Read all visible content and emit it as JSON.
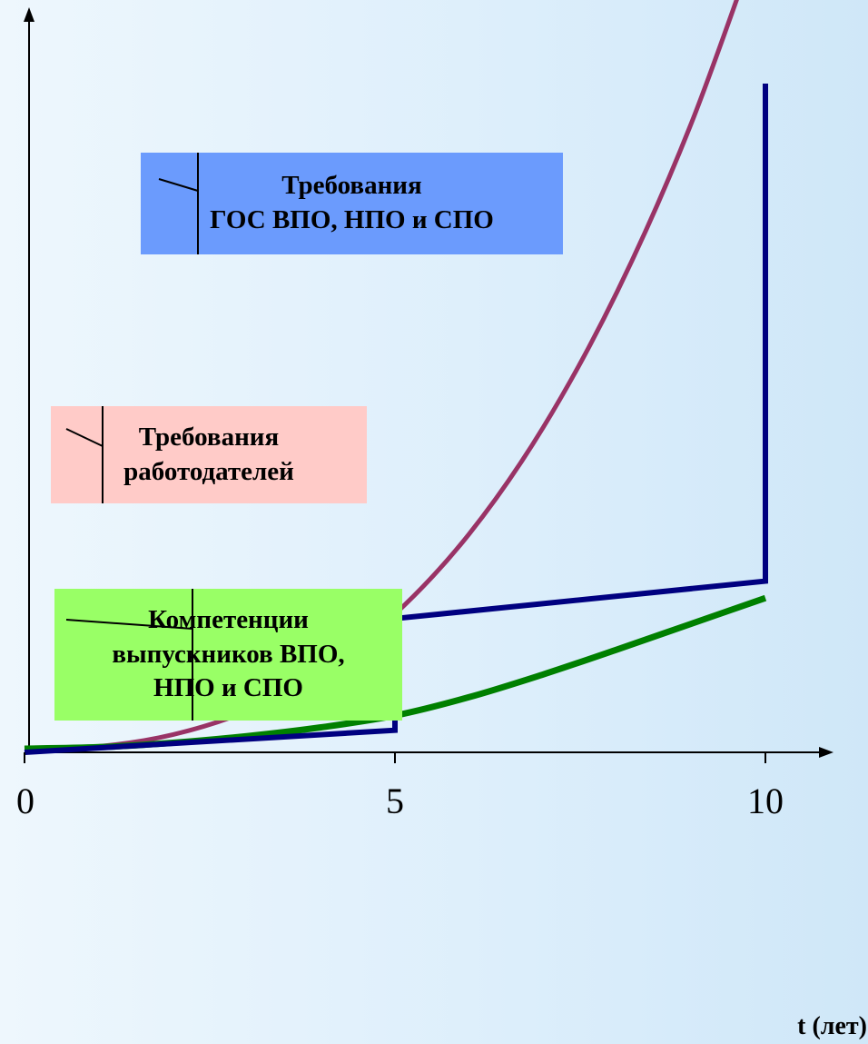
{
  "chart_data": {
    "type": "line",
    "xlabel": "t (лет)",
    "ylabel": "",
    "xlim": [
      0,
      10.8
    ],
    "ylim": [
      0,
      10
    ],
    "x_ticks": [
      0,
      5,
      10
    ],
    "grid": false,
    "series": [
      {
        "name": "Требования ГОС ВПО, НПО и СПО",
        "color": "#6b9bfd",
        "line_color": "#000080",
        "x": [
          0,
          5,
          5,
          10,
          10
        ],
        "y": [
          0,
          0.3,
          1.82,
          2.33,
          9.1
        ]
      },
      {
        "name": "Требования работодателей",
        "color": "#ffcbc8",
        "line_color": "#993366",
        "x": [
          0,
          1,
          2,
          3,
          4,
          5,
          6,
          7,
          8,
          9,
          10
        ],
        "y": [
          0.05,
          0.08,
          0.24,
          0.56,
          1.09,
          1.88,
          2.97,
          4.42,
          6.27,
          8.56,
          11.35
        ]
      },
      {
        "name": "Компетенции выпускников ВПО, НПО и СПО",
        "color": "#99ff66",
        "line_color": "#008000",
        "x": [
          0,
          1,
          2,
          3,
          4,
          5,
          6,
          7,
          8,
          9,
          10
        ],
        "y": [
          0.05,
          0.07,
          0.13,
          0.22,
          0.34,
          0.5,
          0.75,
          1.06,
          1.4,
          1.75,
          2.1
        ]
      }
    ],
    "legend": [
      {
        "lines": [
          "Требования",
          "ГОС ВПО, НПО и СПО"
        ],
        "fill": "#6b9bfd"
      },
      {
        "lines": [
          "Требования",
          "работодателей"
        ],
        "fill": "#ffcbc8"
      },
      {
        "lines": [
          "Компетенции",
          "выпускников ВПО,",
          "НПО и СПО"
        ],
        "fill": "#99ff66"
      }
    ]
  }
}
